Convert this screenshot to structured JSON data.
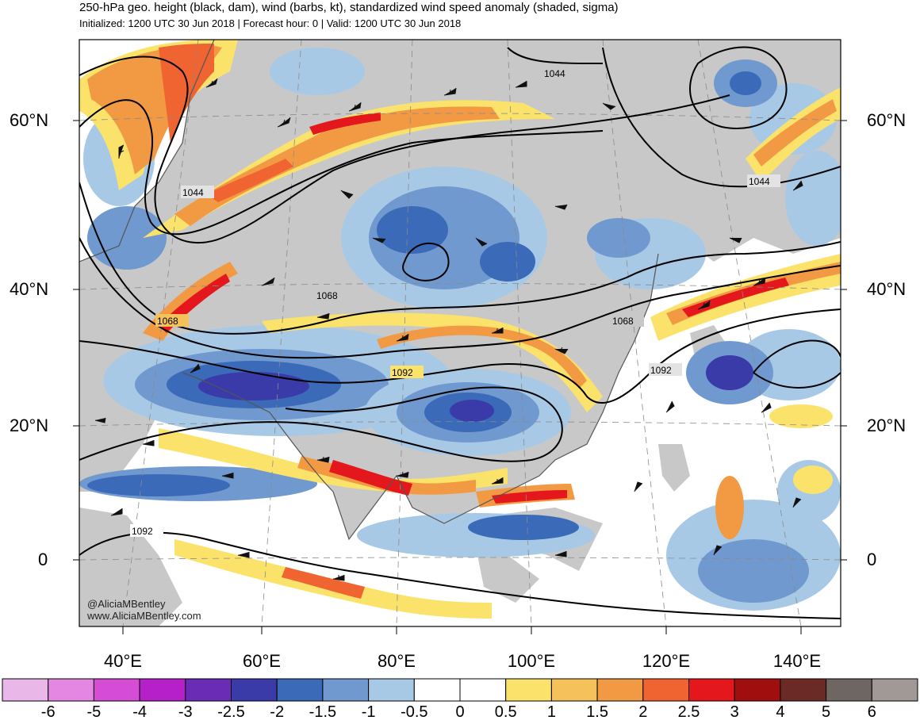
{
  "header": {
    "title": "250-hPa geo. height (black, dam), wind (barbs, kt), standardized wind speed anomaly (shaded, sigma)",
    "subtitle": "Initialized: 1200 UTC 30 Jun 2018 | Forecast hour: 0 | Valid: 1200 UTC 30 Jun 2018"
  },
  "map": {
    "lat_labels": [
      "60°N",
      "40°N",
      "20°N",
      "0"
    ],
    "lon_labels": [
      "40°E",
      "60°E",
      "80°E",
      "100°E",
      "120°E",
      "140°E"
    ],
    "contour_labels": [
      "1044",
      "1044",
      "1044",
      "1068",
      "1068",
      "1068",
      "1092",
      "1092",
      "1092"
    ],
    "colors": {
      "land": "#c8c8c8",
      "coast": "#555555",
      "contour": "#000000"
    }
  },
  "credits": {
    "handle": "@AliciaMBentley",
    "website": "www.AliciaMBentley.com"
  },
  "colorbar": {
    "labels": [
      "-6",
      "-5",
      "-4",
      "-3",
      "-2.5",
      "-2",
      "-1.5",
      "-1",
      "-0.5",
      "0",
      "0.5",
      "1",
      "1.5",
      "2",
      "2.5",
      "3",
      "4",
      "5",
      "6"
    ],
    "colors": [
      "#e9b8e9",
      "#e387e3",
      "#d54dd5",
      "#b520c8",
      "#6a2bb5",
      "#3a3aa8",
      "#3a6ab8",
      "#6f99cf",
      "#a8c9e6",
      "#ffffff",
      "#ffffff",
      "#fbe36b",
      "#f5c15a",
      "#f29a43",
      "#ef6430",
      "#e3171c",
      "#a10e0e",
      "#6b2a25",
      "#6e6663",
      "#a09996"
    ]
  }
}
